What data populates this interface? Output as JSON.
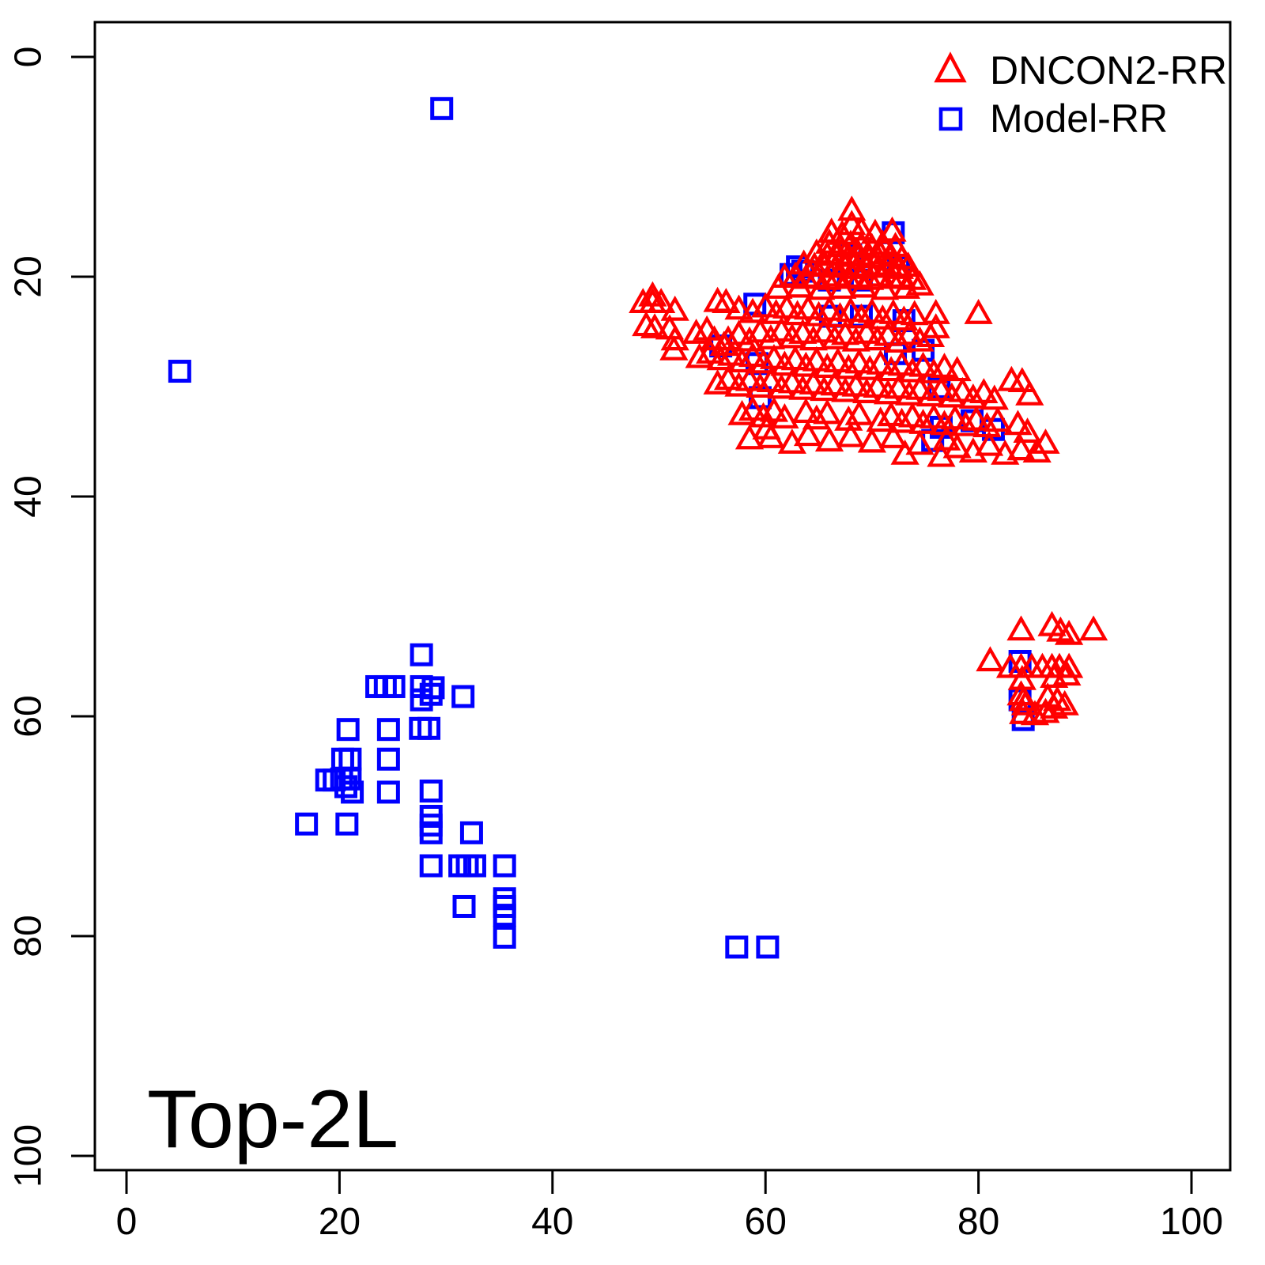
{
  "colors": {
    "dncon2": "#ff0000",
    "model": "#0000ff",
    "axis": "#000000",
    "background": "#ffffff"
  },
  "chart_data": {
    "type": "scatter",
    "title": "Top-2L",
    "xlabel": "",
    "ylabel": "",
    "xlim": [
      0,
      100
    ],
    "ylim": [
      0,
      100
    ],
    "y_axis_reversed": true,
    "grid": false,
    "x_ticks": [
      0,
      20,
      40,
      60,
      80,
      100
    ],
    "y_ticks": [
      0,
      20,
      40,
      60,
      80,
      100
    ],
    "legend": {
      "position": "top-right",
      "items": [
        {
          "label": "DNCON2-RR",
          "marker": "open-triangle",
          "color": "#ff0000"
        },
        {
          "label": "Model-RR",
          "marker": "open-square",
          "color": "#0000ff"
        }
      ]
    },
    "series": [
      {
        "name": "Model-RR",
        "marker": "open-square",
        "color": "#0000ff",
        "points": [
          [
            29.6,
            4.7
          ],
          [
            5,
            28.6
          ],
          [
            57.3,
            81
          ],
          [
            60.2,
            81
          ],
          [
            72,
            16
          ],
          [
            68,
            18
          ],
          [
            63,
            19.1
          ],
          [
            72.5,
            19.1
          ],
          [
            62.4,
            19.8
          ],
          [
            66,
            20.3
          ],
          [
            69,
            20.3
          ],
          [
            63.5,
            19.5
          ],
          [
            59,
            22.5
          ],
          [
            66.1,
            23.6
          ],
          [
            69,
            23.6
          ],
          [
            73,
            24
          ],
          [
            55.8,
            26.3
          ],
          [
            59.2,
            27.9
          ],
          [
            72.2,
            27
          ],
          [
            74.8,
            26.7
          ],
          [
            59.5,
            31
          ],
          [
            76.3,
            30.1
          ],
          [
            76.5,
            33.7
          ],
          [
            79.4,
            33.1
          ],
          [
            81.4,
            33.9
          ],
          [
            75.7,
            34.9
          ],
          [
            83.9,
            55
          ],
          [
            83.9,
            58.5
          ],
          [
            84.2,
            60.3
          ],
          [
            27.7,
            54.4
          ],
          [
            23.5,
            57.3
          ],
          [
            24.3,
            57.3
          ],
          [
            25.1,
            57.3
          ],
          [
            27.7,
            57.3
          ],
          [
            28.8,
            57.4
          ],
          [
            27.7,
            58.5
          ],
          [
            28.6,
            58
          ],
          [
            31.6,
            58.2
          ],
          [
            20.8,
            61.2
          ],
          [
            24.6,
            61.2
          ],
          [
            27.6,
            61.1
          ],
          [
            28.4,
            61.1
          ],
          [
            20.3,
            63.9
          ],
          [
            21,
            63.9
          ],
          [
            24.6,
            63.9
          ],
          [
            18.8,
            65.8
          ],
          [
            19.5,
            65.8
          ],
          [
            20.2,
            65.7
          ],
          [
            21,
            65.7
          ],
          [
            20.6,
            66.4
          ],
          [
            21.2,
            66.9
          ],
          [
            24.6,
            66.9
          ],
          [
            28.6,
            66.8
          ],
          [
            16.9,
            69.8
          ],
          [
            20.7,
            69.8
          ],
          [
            28.6,
            69.1
          ],
          [
            28.6,
            69.9
          ],
          [
            28.6,
            70.6
          ],
          [
            32.4,
            70.6
          ],
          [
            28.6,
            73.6
          ],
          [
            31.3,
            73.6
          ],
          [
            32,
            73.6
          ],
          [
            32.7,
            73.6
          ],
          [
            35.5,
            73.6
          ],
          [
            31.7,
            77.3
          ],
          [
            35.5,
            76.6
          ],
          [
            35.5,
            77.3
          ],
          [
            35.5,
            78.1
          ],
          [
            35.5,
            80.1
          ]
        ]
      },
      {
        "name": "DNCON2-RR",
        "marker": "open-triangle",
        "color": "#ff0000",
        "points": [
          [
            68.1,
            14
          ],
          [
            68.1,
            15.3
          ],
          [
            66.2,
            16
          ],
          [
            67.2,
            16.2
          ],
          [
            69,
            15.8
          ],
          [
            70.3,
            16.1
          ],
          [
            71.9,
            15.9
          ],
          [
            66,
            17
          ],
          [
            67,
            17.3
          ],
          [
            68,
            17.1
          ],
          [
            69,
            17.2
          ],
          [
            70,
            17.4
          ],
          [
            71,
            17.1
          ],
          [
            72.2,
            17.3
          ],
          [
            64.8,
            17.9
          ],
          [
            65.8,
            18.1
          ],
          [
            66.8,
            18
          ],
          [
            67.8,
            18.2
          ],
          [
            68.8,
            18.1
          ],
          [
            69.8,
            18.3
          ],
          [
            70.8,
            18
          ],
          [
            71.8,
            18.2
          ],
          [
            72.8,
            18.4
          ],
          [
            63.6,
            18.9
          ],
          [
            64.6,
            19.1
          ],
          [
            65.6,
            19
          ],
          [
            66.6,
            19.2
          ],
          [
            67.6,
            19
          ],
          [
            68.6,
            19.3
          ],
          [
            69.6,
            19.1
          ],
          [
            70.6,
            19.2
          ],
          [
            71.6,
            19
          ],
          [
            72.6,
            19.3
          ],
          [
            73.4,
            19.1
          ],
          [
            61.8,
            20.1
          ],
          [
            62.8,
            20
          ],
          [
            63.8,
            20.2
          ],
          [
            64.8,
            20.1
          ],
          [
            65.8,
            20.3
          ],
          [
            66.8,
            20
          ],
          [
            67.8,
            20.2
          ],
          [
            68.8,
            20.1
          ],
          [
            69.8,
            20.3
          ],
          [
            70.8,
            20
          ],
          [
            71.8,
            20.2
          ],
          [
            72.8,
            20.1
          ],
          [
            73.8,
            20.3
          ],
          [
            61.2,
            21.1
          ],
          [
            63.2,
            21
          ],
          [
            65.2,
            21.2
          ],
          [
            67.2,
            21.1
          ],
          [
            69.2,
            21
          ],
          [
            71.2,
            21.2
          ],
          [
            73.2,
            21.1
          ],
          [
            74.5,
            20.8
          ],
          [
            49.4,
            21.8
          ],
          [
            48.5,
            22.4
          ],
          [
            49.4,
            22.4
          ],
          [
            50.2,
            22.4
          ],
          [
            51.5,
            23.1
          ],
          [
            48.8,
            24.5
          ],
          [
            49.6,
            24.7
          ],
          [
            51,
            24.8
          ],
          [
            51.5,
            25.8
          ],
          [
            51.4,
            26.7
          ],
          [
            55.5,
            22.3
          ],
          [
            56.3,
            22.4
          ],
          [
            57.5,
            23
          ],
          [
            58.8,
            23.3
          ],
          [
            60,
            22.8
          ],
          [
            61,
            23.4
          ],
          [
            62,
            22.9
          ],
          [
            63,
            23.5
          ],
          [
            64,
            23
          ],
          [
            65,
            23.6
          ],
          [
            66,
            23.1
          ],
          [
            67,
            23.7
          ],
          [
            68,
            23.2
          ],
          [
            69,
            23.8
          ],
          [
            70,
            23.3
          ],
          [
            71,
            23.9
          ],
          [
            72,
            23.4
          ],
          [
            73,
            24
          ],
          [
            74,
            23.5
          ],
          [
            76,
            23.4
          ],
          [
            76,
            24.7
          ],
          [
            80,
            23.4
          ],
          [
            53.5,
            25.2
          ],
          [
            54.5,
            24.9
          ],
          [
            55.2,
            25.8
          ],
          [
            56.5,
            25.8
          ],
          [
            56.1,
            26.3
          ],
          [
            57.5,
            25.3
          ],
          [
            58.5,
            25.9
          ],
          [
            59.5,
            25.1
          ],
          [
            60.5,
            25.7
          ],
          [
            61.5,
            25
          ],
          [
            62.5,
            25.6
          ],
          [
            63.5,
            25.2
          ],
          [
            64.5,
            25.8
          ],
          [
            65.5,
            25.1
          ],
          [
            66.5,
            25.7
          ],
          [
            67.5,
            25.3
          ],
          [
            68.5,
            25.9
          ],
          [
            69.5,
            25.2
          ],
          [
            70.5,
            25.8
          ],
          [
            71.5,
            25.4
          ],
          [
            72.5,
            26
          ],
          [
            73.5,
            25.3
          ],
          [
            74.5,
            25.9
          ],
          [
            75.5,
            25.5
          ],
          [
            53.8,
            27.4
          ],
          [
            54.8,
            27
          ],
          [
            55.8,
            27.6
          ],
          [
            56.8,
            27.2
          ],
          [
            57.8,
            27.8
          ],
          [
            58.8,
            27.3
          ],
          [
            59.8,
            27.9
          ],
          [
            60.8,
            27.5
          ],
          [
            61.8,
            28.1
          ],
          [
            62.8,
            27.6
          ],
          [
            63.8,
            28.2
          ],
          [
            64.8,
            27.7
          ],
          [
            65.8,
            28.3
          ],
          [
            66.8,
            27.8
          ],
          [
            67.8,
            28.4
          ],
          [
            68.8,
            27.9
          ],
          [
            69.8,
            28.5
          ],
          [
            70.8,
            28
          ],
          [
            71.8,
            28.6
          ],
          [
            72.8,
            28.1
          ],
          [
            73.8,
            28.7
          ],
          [
            74.8,
            28.2
          ],
          [
            75.8,
            28.8
          ],
          [
            76.8,
            28.3
          ],
          [
            78,
            28.6
          ],
          [
            55.5,
            29.8
          ],
          [
            56.5,
            29.4
          ],
          [
            57.5,
            30
          ],
          [
            58.5,
            29.5
          ],
          [
            59.5,
            30.1
          ],
          [
            60.5,
            29.6
          ],
          [
            61.5,
            30.2
          ],
          [
            62.5,
            29.7
          ],
          [
            63.5,
            30.3
          ],
          [
            64.5,
            29.8
          ],
          [
            65.5,
            30.4
          ],
          [
            66.5,
            29.9
          ],
          [
            67.5,
            30.5
          ],
          [
            68.5,
            30
          ],
          [
            69.5,
            30.6
          ],
          [
            70.5,
            30.1
          ],
          [
            71.5,
            30.7
          ],
          [
            72.5,
            30.2
          ],
          [
            73.5,
            30.8
          ],
          [
            74.5,
            30.3
          ],
          [
            75.5,
            30.9
          ],
          [
            76.5,
            30.4
          ],
          [
            77.5,
            31
          ],
          [
            78.5,
            30.5
          ],
          [
            79.5,
            31.1
          ],
          [
            80.5,
            30.6
          ],
          [
            81.5,
            31.2
          ],
          [
            83.1,
            29.5
          ],
          [
            84.1,
            29.6
          ],
          [
            84.8,
            30.8
          ],
          [
            57.8,
            32.6
          ],
          [
            58.8,
            32.2
          ],
          [
            59.8,
            32.8
          ],
          [
            60.8,
            32.3
          ],
          [
            61.8,
            32.9
          ],
          [
            63.8,
            32.4
          ],
          [
            64.8,
            33
          ],
          [
            65.8,
            32.5
          ],
          [
            67.8,
            33.1
          ],
          [
            68.8,
            32.6
          ],
          [
            70.8,
            33.2
          ],
          [
            71.8,
            32.7
          ],
          [
            72.8,
            33.3
          ],
          [
            73.8,
            32.8
          ],
          [
            74.8,
            33.4
          ],
          [
            75.8,
            32.9
          ],
          [
            76.8,
            33.5
          ],
          [
            77.8,
            33
          ],
          [
            78.8,
            33.6
          ],
          [
            79.8,
            33.1
          ],
          [
            80.8,
            33.7
          ],
          [
            81.8,
            33.2
          ],
          [
            83.7,
            33.5
          ],
          [
            84.6,
            34.2
          ],
          [
            58.5,
            34.8
          ],
          [
            60.1,
            33.9
          ],
          [
            60.5,
            34.7
          ],
          [
            62.5,
            35.2
          ],
          [
            64,
            34.5
          ],
          [
            66,
            35
          ],
          [
            68,
            34.6
          ],
          [
            70,
            35.1
          ],
          [
            72,
            34.7
          ],
          [
            73.1,
            36.2
          ],
          [
            74.5,
            35.3
          ],
          [
            76.5,
            36.4
          ],
          [
            78,
            35.6
          ],
          [
            79.5,
            36
          ],
          [
            81,
            35.4
          ],
          [
            82.5,
            36.2
          ],
          [
            84,
            35.8
          ],
          [
            85.5,
            36
          ],
          [
            86.3,
            35.2
          ],
          [
            77,
            34.9
          ],
          [
            84,
            52.2
          ],
          [
            86.9,
            51.8
          ],
          [
            87.7,
            52.3
          ],
          [
            88.5,
            52.6
          ],
          [
            90.8,
            52.2
          ],
          [
            81.1,
            55
          ],
          [
            83,
            55.6
          ],
          [
            84,
            55.6
          ],
          [
            85,
            55.6
          ],
          [
            86,
            55.6
          ],
          [
            86.9,
            55.6
          ],
          [
            87.6,
            55.6
          ],
          [
            88.5,
            55.6
          ],
          [
            84.1,
            56.7
          ],
          [
            87.1,
            56.5
          ],
          [
            88.3,
            56.3
          ],
          [
            84,
            58.1
          ],
          [
            84.2,
            58.6
          ],
          [
            86.5,
            58.3
          ],
          [
            87.4,
            58.6
          ],
          [
            88.1,
            59
          ],
          [
            84.4,
            59
          ],
          [
            86.3,
            59.7
          ],
          [
            87.1,
            59.3
          ],
          [
            84.2,
            59.8
          ],
          [
            85.3,
            59.9
          ]
        ]
      }
    ]
  }
}
